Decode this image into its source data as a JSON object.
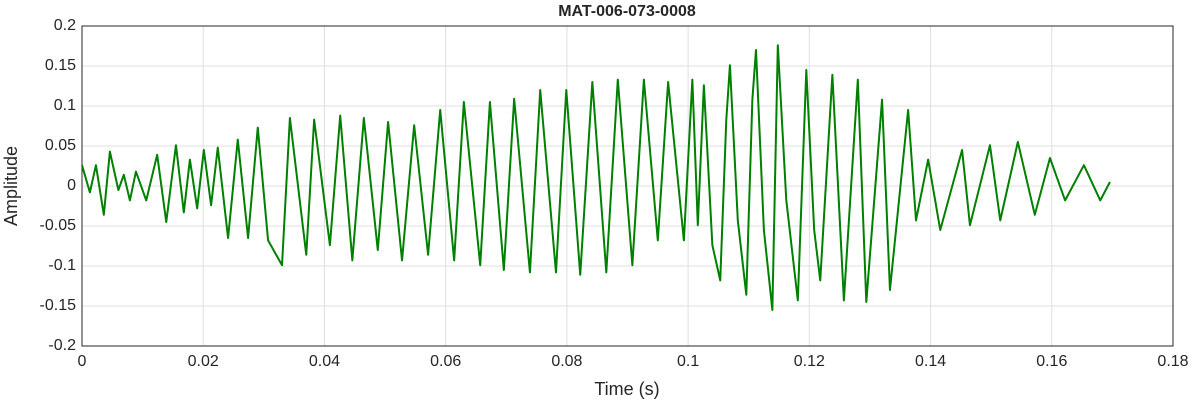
{
  "chart_data": {
    "type": "line",
    "title": "MAT-006-073-0008",
    "xlabel": "Time (s)",
    "ylabel": "Amplitude",
    "x": [
      0,
      0.0013,
      0.0023,
      0.0036,
      0.0046,
      0.006,
      0.0069,
      0.0079,
      0.0089,
      0.0106,
      0.0124,
      0.0139,
      0.0155,
      0.0168,
      0.0178,
      0.019,
      0.0201,
      0.0213,
      0.0224,
      0.0241,
      0.0257,
      0.0274,
      0.029,
      0.0307,
      0.033,
      0.0343,
      0.037,
      0.0383,
      0.0409,
      0.0426,
      0.0446,
      0.0465,
      0.0488,
      0.0505,
      0.0528,
      0.0548,
      0.0571,
      0.0591,
      0.0614,
      0.063,
      0.0657,
      0.0673,
      0.0696,
      0.0713,
      0.0739,
      0.0756,
      0.0782,
      0.0799,
      0.0822,
      0.0842,
      0.0865,
      0.0884,
      0.0908,
      0.0927,
      0.095,
      0.0967,
      0.0993,
      0.1007,
      0.1016,
      0.1026,
      0.104,
      0.1053,
      0.1063,
      0.1069,
      0.1082,
      0.1096,
      0.1106,
      0.1112,
      0.1125,
      0.1139,
      0.1148,
      0.1162,
      0.1181,
      0.1195,
      0.1208,
      0.1218,
      0.1238,
      0.1257,
      0.128,
      0.1294,
      0.132,
      0.1333,
      0.1363,
      0.1376,
      0.1396,
      0.1416,
      0.1452,
      0.1465,
      0.1498,
      0.1515,
      0.1544,
      0.1572,
      0.1597,
      0.1622,
      0.1653,
      0.168,
      0.1696
    ],
    "values": [
      0.026,
      -0.008,
      0.026,
      -0.036,
      0.043,
      -0.005,
      0.014,
      -0.018,
      0.018,
      -0.018,
      0.039,
      -0.045,
      0.051,
      -0.033,
      0.033,
      -0.028,
      0.045,
      -0.024,
      0.048,
      -0.065,
      0.058,
      -0.065,
      0.073,
      -0.068,
      -0.099,
      0.085,
      -0.086,
      0.083,
      -0.074,
      0.088,
      -0.093,
      0.085,
      -0.08,
      0.08,
      -0.093,
      0.076,
      -0.086,
      0.095,
      -0.093,
      0.105,
      -0.099,
      0.105,
      -0.105,
      0.109,
      -0.108,
      0.12,
      -0.108,
      0.12,
      -0.111,
      0.13,
      -0.108,
      0.133,
      -0.099,
      0.133,
      -0.068,
      0.13,
      -0.068,
      0.133,
      -0.049,
      0.126,
      -0.074,
      -0.118,
      0.083,
      0.151,
      -0.043,
      -0.136,
      0.108,
      0.17,
      -0.055,
      -0.155,
      0.176,
      -0.018,
      -0.143,
      0.145,
      -0.055,
      -0.118,
      0.139,
      -0.143,
      0.133,
      -0.145,
      0.108,
      -0.13,
      0.095,
      -0.043,
      0.033,
      -0.055,
      0.045,
      -0.049,
      0.051,
      -0.043,
      0.055,
      -0.036,
      0.035,
      -0.018,
      0.026,
      -0.018,
      0.005
    ],
    "color": "#008000",
    "xlim": [
      0,
      0.18
    ],
    "xticks": [
      0,
      0.02,
      0.04,
      0.06,
      0.08,
      0.1,
      0.12,
      0.14,
      0.16,
      0.18
    ],
    "ylim": [
      -0.2,
      0.2
    ],
    "yticks": [
      -0.2,
      -0.15,
      -0.1,
      -0.05,
      0,
      0.05,
      0.1,
      0.15,
      0.2
    ],
    "grid": true
  }
}
